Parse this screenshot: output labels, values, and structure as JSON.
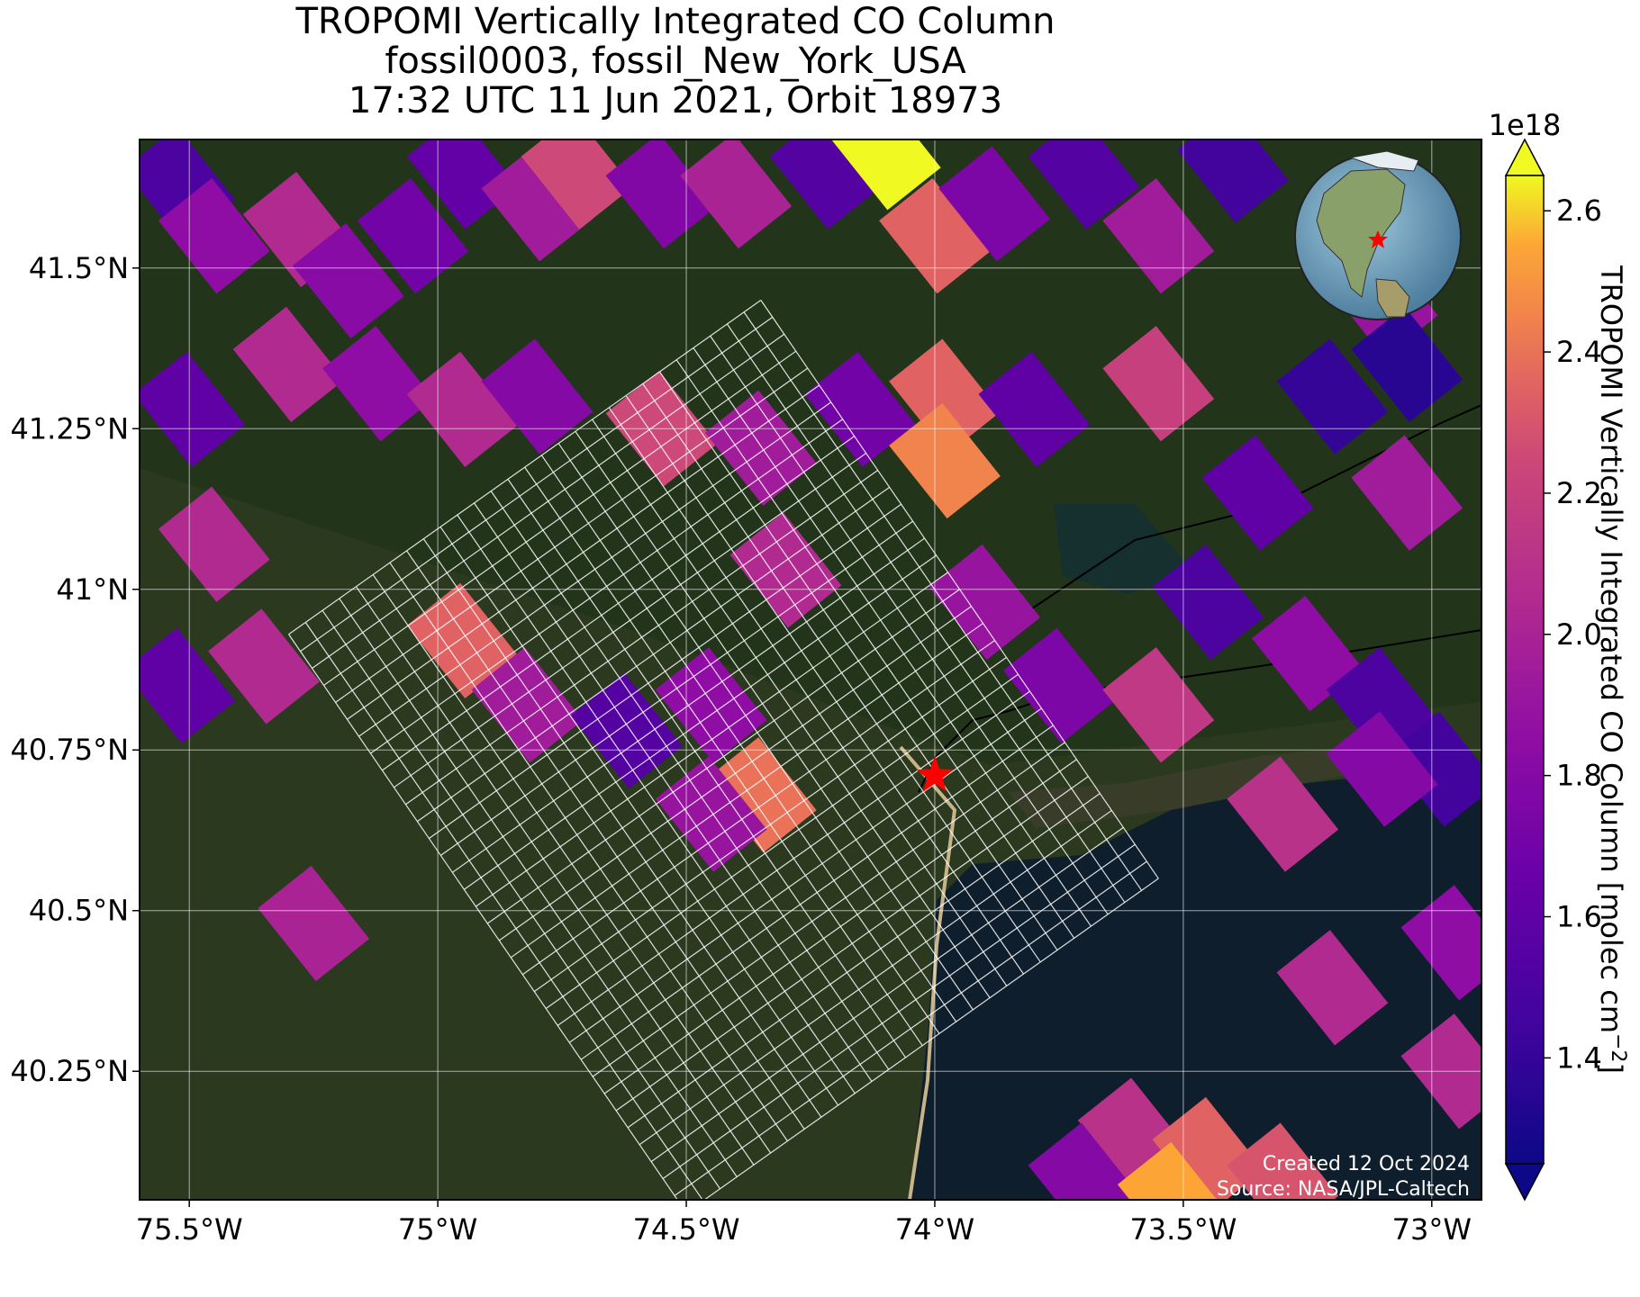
{
  "title": {
    "line1": "TROPOMI Vertically Integrated CO Column",
    "line2": "fossil0003, fossil_New_York_USA",
    "line3": "17:32 UTC 11 Jun 2021, Orbit 18973"
  },
  "map": {
    "lon_range": [
      -75.6,
      -72.9
    ],
    "lat_range": [
      40.05,
      41.7
    ],
    "x_ticks": [
      {
        "value": -75.5,
        "label": "75.5°W"
      },
      {
        "value": -75.0,
        "label": "75°W"
      },
      {
        "value": -74.5,
        "label": "74.5°W"
      },
      {
        "value": -74.0,
        "label": "74°W"
      },
      {
        "value": -73.5,
        "label": "73.5°W"
      },
      {
        "value": -73.0,
        "label": "73°W"
      }
    ],
    "y_ticks": [
      {
        "value": 41.5,
        "label": "41.5°N"
      },
      {
        "value": 41.25,
        "label": "41.25°N"
      },
      {
        "value": 41.0,
        "label": "41°N"
      },
      {
        "value": 40.75,
        "label": "40.75°N"
      },
      {
        "value": 40.5,
        "label": "40.5°N"
      },
      {
        "value": 40.25,
        "label": "40.25°N"
      }
    ],
    "gridlines": true,
    "basemap": "satellite imagery",
    "target_marker": {
      "lon": -74.0,
      "lat": 40.71,
      "symbol": "star",
      "color": "#ff0000"
    },
    "target_footprint_overlay": "white quadrilateral grid",
    "inset_globe": {
      "position": "top-right",
      "marker": "star",
      "marker_color": "#ff0000"
    },
    "credit_line1": "Created 12 Oct 2024",
    "credit_line2": "Source: NASA/JPL-Caltech"
  },
  "colorbar": {
    "label": "TROPOMI Vertically Integrated CO Column [molec cm⁻²]",
    "label_main": "TROPOMI Vertically Integrated CO Column [molec cm",
    "label_exp": "−2",
    "label_end": "]",
    "multiplier": "1e18",
    "colormap": "plasma",
    "vmin": 1.25,
    "vmax": 2.65,
    "extend": "both",
    "ticks": [
      {
        "value": 1.4,
        "label": "1.4"
      },
      {
        "value": 1.6,
        "label": "1.6"
      },
      {
        "value": 1.8,
        "label": "1.8"
      },
      {
        "value": 2.0,
        "label": "2.0"
      },
      {
        "value": 2.2,
        "label": "2.2"
      },
      {
        "value": 2.4,
        "label": "2.4"
      },
      {
        "value": 2.6,
        "label": "2.6"
      }
    ]
  },
  "chart_data": {
    "type": "heatmap",
    "title": "TROPOMI Vertically Integrated CO Column",
    "subtitle": "fossil0003, fossil_New_York_USA\n17:32 UTC 11 Jun 2021, Orbit 18973",
    "xlabel": "",
    "ylabel": "",
    "xlim": [
      -75.6,
      -72.9
    ],
    "ylim": [
      40.05,
      41.7
    ],
    "grid": true,
    "colorbar_label": "TROPOMI Vertically Integrated CO Column [molec cm⁻²]",
    "value_scale": "1e18",
    "pixels": [
      {
        "lon": -75.52,
        "lat": 41.63,
        "value": 1.5
      },
      {
        "lon": -75.45,
        "lat": 41.55,
        "value": 1.85
      },
      {
        "lon": -75.28,
        "lat": 41.56,
        "value": 2.05
      },
      {
        "lon": -75.18,
        "lat": 41.48,
        "value": 1.82
      },
      {
        "lon": -75.05,
        "lat": 41.55,
        "value": 1.7
      },
      {
        "lon": -74.95,
        "lat": 41.65,
        "value": 1.62
      },
      {
        "lon": -74.8,
        "lat": 41.6,
        "value": 1.95
      },
      {
        "lon": -74.72,
        "lat": 41.65,
        "value": 2.25
      },
      {
        "lon": -74.55,
        "lat": 41.62,
        "value": 1.78
      },
      {
        "lon": -74.4,
        "lat": 41.62,
        "value": 2.0
      },
      {
        "lon": -74.22,
        "lat": 41.65,
        "value": 1.55
      },
      {
        "lon": -74.1,
        "lat": 41.68,
        "value": 2.65
      },
      {
        "lon": -74.0,
        "lat": 41.55,
        "value": 2.35
      },
      {
        "lon": -73.88,
        "lat": 41.6,
        "value": 1.75
      },
      {
        "lon": -73.7,
        "lat": 41.65,
        "value": 1.55
      },
      {
        "lon": -73.55,
        "lat": 41.55,
        "value": 1.95
      },
      {
        "lon": -73.4,
        "lat": 41.66,
        "value": 1.45
      },
      {
        "lon": -73.1,
        "lat": 41.45,
        "value": 1.9
      },
      {
        "lon": -73.05,
        "lat": 41.35,
        "value": 1.35
      },
      {
        "lon": -75.5,
        "lat": 41.28,
        "value": 1.6
      },
      {
        "lon": -75.3,
        "lat": 41.35,
        "value": 2.05
      },
      {
        "lon": -75.12,
        "lat": 41.32,
        "value": 1.85
      },
      {
        "lon": -74.95,
        "lat": 41.28,
        "value": 2.05
      },
      {
        "lon": -74.8,
        "lat": 41.3,
        "value": 1.8
      },
      {
        "lon": -74.55,
        "lat": 41.25,
        "value": 2.25
      },
      {
        "lon": -74.35,
        "lat": 41.22,
        "value": 1.95
      },
      {
        "lon": -74.15,
        "lat": 41.28,
        "value": 1.7
      },
      {
        "lon": -73.98,
        "lat": 41.3,
        "value": 2.35
      },
      {
        "lon": -73.98,
        "lat": 41.2,
        "value": 2.45
      },
      {
        "lon": -73.8,
        "lat": 41.28,
        "value": 1.6
      },
      {
        "lon": -73.55,
        "lat": 41.32,
        "value": 2.2
      },
      {
        "lon": -73.35,
        "lat": 41.15,
        "value": 1.6
      },
      {
        "lon": -73.2,
        "lat": 41.3,
        "value": 1.4
      },
      {
        "lon": -73.05,
        "lat": 41.15,
        "value": 1.95
      },
      {
        "lon": -75.45,
        "lat": 41.07,
        "value": 2.05
      },
      {
        "lon": -74.95,
        "lat": 40.92,
        "value": 2.35
      },
      {
        "lon": -74.82,
        "lat": 40.82,
        "value": 1.95
      },
      {
        "lon": -74.62,
        "lat": 40.78,
        "value": 1.55
      },
      {
        "lon": -74.45,
        "lat": 40.82,
        "value": 1.85
      },
      {
        "lon": -74.3,
        "lat": 41.03,
        "value": 2.05
      },
      {
        "lon": -73.9,
        "lat": 40.98,
        "value": 1.9
      },
      {
        "lon": -73.75,
        "lat": 40.85,
        "value": 1.75
      },
      {
        "lon": -73.55,
        "lat": 40.82,
        "value": 2.15
      },
      {
        "lon": -73.45,
        "lat": 40.98,
        "value": 1.5
      },
      {
        "lon": -73.25,
        "lat": 40.9,
        "value": 1.85
      },
      {
        "lon": -73.1,
        "lat": 40.82,
        "value": 1.5
      },
      {
        "lon": -72.98,
        "lat": 40.72,
        "value": 1.45
      },
      {
        "lon": -75.52,
        "lat": 40.85,
        "value": 1.6
      },
      {
        "lon": -75.35,
        "lat": 40.88,
        "value": 2.05
      },
      {
        "lon": -74.35,
        "lat": 40.68,
        "value": 2.4
      },
      {
        "lon": -74.45,
        "lat": 40.65,
        "value": 1.9
      },
      {
        "lon": -73.3,
        "lat": 40.65,
        "value": 2.1
      },
      {
        "lon": -73.1,
        "lat": 40.72,
        "value": 1.8
      },
      {
        "lon": -75.25,
        "lat": 40.48,
        "value": 2.0
      },
      {
        "lon": -72.95,
        "lat": 40.45,
        "value": 1.85
      },
      {
        "lon": -73.2,
        "lat": 40.38,
        "value": 2.05
      },
      {
        "lon": -72.95,
        "lat": 40.25,
        "value": 2.05
      },
      {
        "lon": -73.6,
        "lat": 40.15,
        "value": 2.1
      },
      {
        "lon": -73.45,
        "lat": 40.12,
        "value": 2.35
      },
      {
        "lon": -73.7,
        "lat": 40.08,
        "value": 1.8
      },
      {
        "lon": -73.3,
        "lat": 40.08,
        "value": 2.3
      },
      {
        "lon": -73.52,
        "lat": 40.05,
        "value": 2.55
      }
    ]
  }
}
